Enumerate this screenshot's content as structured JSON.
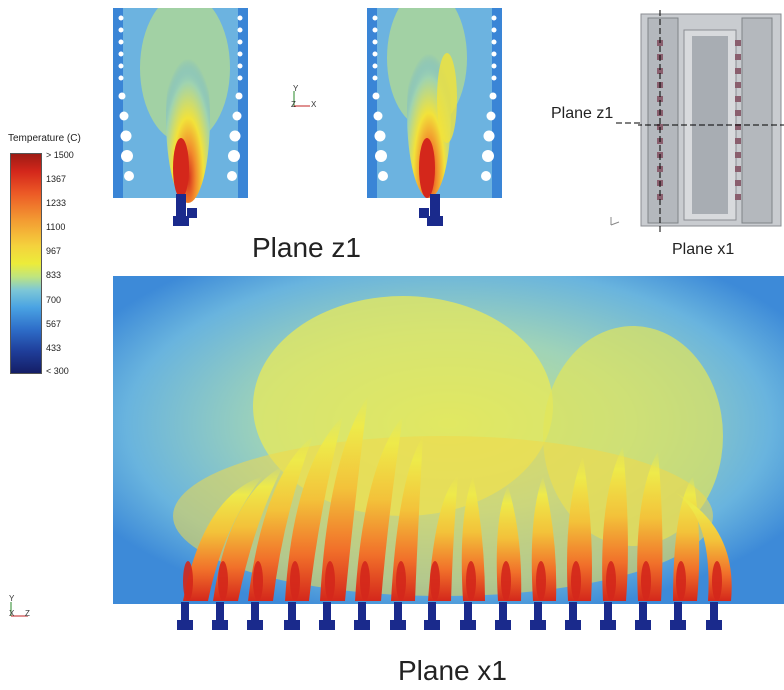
{
  "legend": {
    "title": "Temperature (C)",
    "ticks": [
      "> 1500",
      "1367",
      "1233",
      "1100",
      "967",
      "833",
      "700",
      "567",
      "433",
      "< 300"
    ]
  },
  "labels": {
    "plane_z1": "Plane z1",
    "plane_x1": "Plane x1",
    "inset_plane_z1": "Plane z1",
    "inset_plane_x1": "Plane x1"
  },
  "axes": {
    "top": {
      "up": "Y",
      "left": "Z",
      "right": "X"
    },
    "bottom": {
      "up": "Y",
      "left": "X",
      "right": "Z"
    }
  },
  "colors": {
    "hot": "#c81e16",
    "warm": "#f28a2c",
    "mid": "#f2e23a",
    "cool": "#7cc4de",
    "cold": "#2f6ed0",
    "burner": "#1a2a8c"
  },
  "burner_count": 16
}
